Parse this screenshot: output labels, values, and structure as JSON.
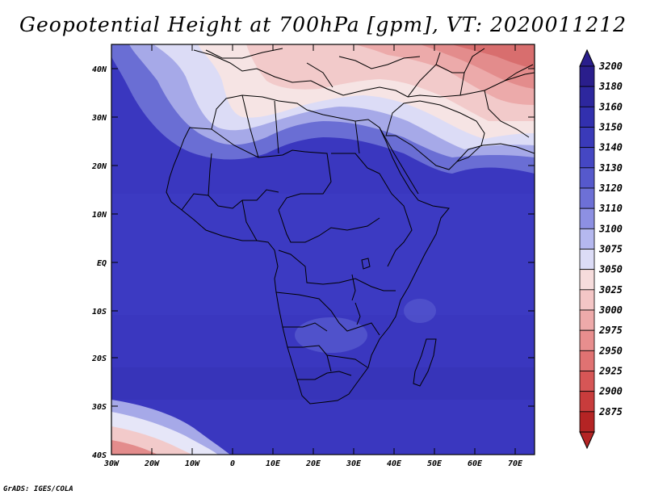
{
  "title": "Geopotential Height at 700hPa [gpm], VT: 2020011212",
  "credit": "GrADS: IGES/COLA",
  "lat_labels": [
    "40N",
    "30N",
    "20N",
    "10N",
    "EQ",
    "10S",
    "20S",
    "30S",
    "40S"
  ],
  "lon_labels": [
    "30W",
    "20W",
    "10W",
    "0",
    "10E",
    "20E",
    "30E",
    "40E",
    "50E",
    "60E",
    "70E"
  ],
  "colorbar": {
    "levels": [
      "3200",
      "3180",
      "3160",
      "3150",
      "3140",
      "3130",
      "3120",
      "3110",
      "3100",
      "3075",
      "3050",
      "3025",
      "3000",
      "2975",
      "2950",
      "2925",
      "2900",
      "2875"
    ],
    "colors": [
      "#2a1e8c",
      "#2d279e",
      "#3230ae",
      "#3a3ab9",
      "#4547c3",
      "#5659cc",
      "#6d70d6",
      "#8d90e3",
      "#b5b8ef",
      "#dcdcf6",
      "#f6dcdc",
      "#f4c6c6",
      "#eeaaaa",
      "#e88e8e",
      "#e07272",
      "#d65656",
      "#c83c3c",
      "#b42424"
    ]
  }
}
